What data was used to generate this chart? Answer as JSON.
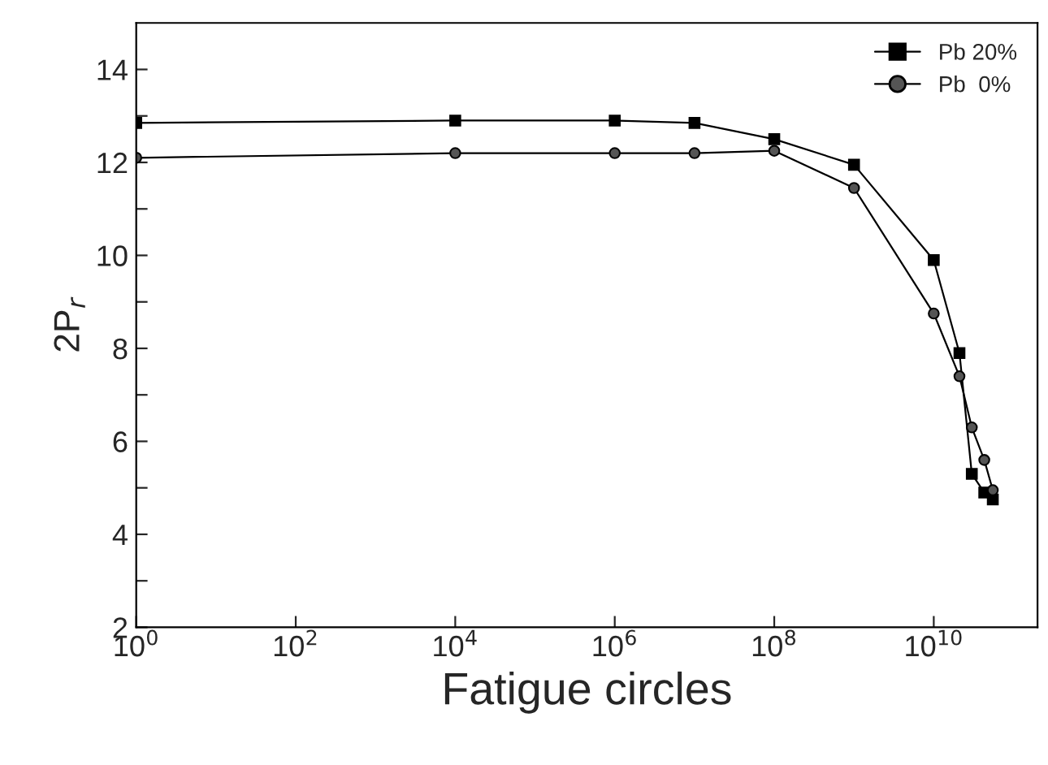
{
  "chart_data": {
    "type": "line",
    "xlabel": "Fatigue circles",
    "ylabel": "2P$_{r}$",
    "log": "x",
    "x": [
      1,
      10000.0,
      1000000.0,
      10000000.0,
      100000000.0,
      1000000000.0,
      10000000000.0,
      21000000000.0,
      30000000000.0,
      43000000000.0,
      55000000000.0
    ],
    "series": [
      {
        "name": "Pb 20%",
        "color": "#000000",
        "marker": "square",
        "values": [
          12.85,
          12.9,
          12.9,
          12.85,
          12.5,
          11.95,
          9.9,
          7.9,
          5.3,
          4.9,
          4.75
        ]
      },
      {
        "name": "Pb  0%",
        "color": "#555555",
        "marker": "circle",
        "values": [
          12.1,
          12.2,
          12.2,
          12.2,
          12.25,
          11.45,
          8.75,
          7.4,
          6.3,
          5.6,
          4.95
        ]
      }
    ],
    "xlim": [
      1,
      200000000000.0
    ],
    "xticks": [
      {
        "value": 1,
        "label": "10$^{0}$"
      },
      {
        "value": 100,
        "label": "10$^{2}$"
      },
      {
        "value": 10000,
        "label": "10$^{4}$"
      },
      {
        "value": 1000000,
        "label": "10$^{6}$"
      },
      {
        "value": 100000000,
        "label": "10$^{8}$"
      },
      {
        "value": 10000000000,
        "label": "10$^{10}$"
      }
    ],
    "ylim": [
      2,
      15
    ],
    "yticks": [
      2,
      {
        "value": 3,
        "label": null
      },
      4,
      {
        "value": 5,
        "label": null
      },
      6,
      {
        "value": 7,
        "label": null
      },
      8,
      {
        "value": 9,
        "label": null
      },
      10,
      {
        "value": 11,
        "label": null
      },
      12,
      {
        "value": 13,
        "label": null
      },
      14
    ],
    "legend": "top right",
    "grid": false,
    "line_style": "solid"
  }
}
